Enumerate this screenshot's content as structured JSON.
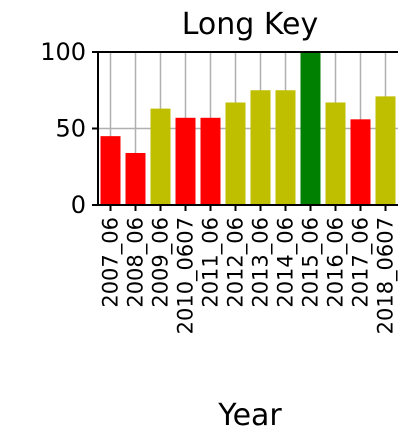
{
  "chart_data": {
    "type": "bar",
    "title": "Long Key",
    "xlabel": "Year",
    "ylabel": "",
    "ylim": [
      0,
      100
    ],
    "yticks": [
      0,
      50,
      100
    ],
    "grid": "vertical lines at each category and horizontal line at 50",
    "categories": [
      "2007_06",
      "2008_06",
      "2009_06",
      "2010_0607",
      "2011_06",
      "2012_06",
      "2013_06",
      "2014_06",
      "2015_06",
      "2016_06",
      "2017_06",
      "2018_0607"
    ],
    "values": [
      45,
      34,
      63,
      57,
      57,
      67,
      75,
      75,
      100,
      67,
      56,
      71
    ],
    "bar_colors": [
      "#ff0000",
      "#ff0000",
      "#bfbf00",
      "#ff0000",
      "#ff0000",
      "#bfbf00",
      "#bfbf00",
      "#bfbf00",
      "#008000",
      "#bfbf00",
      "#ff0000",
      "#bfbf00"
    ]
  }
}
